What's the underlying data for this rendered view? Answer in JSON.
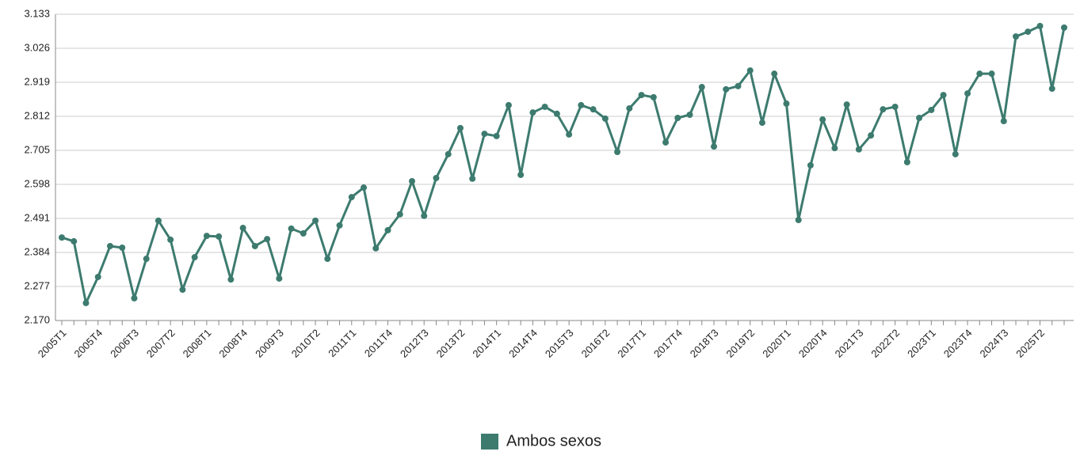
{
  "chart_data": {
    "type": "line",
    "categories": [
      "2005T1",
      null,
      null,
      "2005T4",
      null,
      null,
      "2006T3",
      null,
      null,
      "2007T2",
      null,
      null,
      "2008T1",
      null,
      null,
      "2008T4",
      null,
      null,
      "2009T3",
      null,
      null,
      "2010T2",
      null,
      null,
      "2011T1",
      null,
      null,
      "2011T4",
      null,
      null,
      "2012T3",
      null,
      null,
      "2013T2",
      null,
      null,
      "2014T1",
      null,
      null,
      "2014T4",
      null,
      null,
      "2015T3",
      null,
      null,
      "2016T2",
      null,
      null,
      "2017T1",
      null,
      null,
      "2017T4",
      null,
      null,
      "2018T3",
      null,
      null,
      "2019T2",
      null,
      null,
      "2020T1",
      null,
      null,
      "2020T4",
      null,
      null,
      "2021T3",
      null,
      null,
      "2022T2",
      null,
      null,
      "2023T1",
      null,
      null,
      "2023T4",
      null,
      null,
      "2024T3",
      null,
      null,
      "2025T2",
      null,
      null
    ],
    "series": [
      {
        "name": "Ambos sexos",
        "color": "#3d7b6f",
        "values": [
          2.431,
          2.419,
          2.225,
          2.307,
          2.404,
          2.399,
          2.24,
          2.364,
          2.484,
          2.424,
          2.267,
          2.369,
          2.436,
          2.434,
          2.299,
          2.461,
          2.404,
          2.426,
          2.302,
          2.459,
          2.444,
          2.484,
          2.364,
          2.469,
          2.558,
          2.588,
          2.397,
          2.454,
          2.504,
          2.608,
          2.499,
          2.618,
          2.693,
          2.775,
          2.616,
          2.757,
          2.75,
          2.847,
          2.628,
          2.824,
          2.842,
          2.82,
          2.755,
          2.847,
          2.834,
          2.805,
          2.7,
          2.837,
          2.879,
          2.872,
          2.73,
          2.807,
          2.817,
          2.904,
          2.717,
          2.897,
          2.907,
          2.956,
          2.792,
          2.946,
          2.852,
          2.486,
          2.658,
          2.802,
          2.712,
          2.849,
          2.708,
          2.752,
          2.834,
          2.842,
          2.668,
          2.807,
          2.832,
          2.879,
          2.693,
          2.884,
          2.946,
          2.946,
          2.797,
          3.063,
          3.078,
          3.096,
          2.899,
          3.091
        ]
      }
    ],
    "ylim": [
      2.17,
      3.133
    ],
    "yticks": [
      {
        "value": 2.17,
        "label": "2.170"
      },
      2.277,
      2.384,
      2.491,
      2.598,
      2.705,
      2.812,
      2.919,
      3.026,
      3.133
    ],
    "grid": true,
    "legend": "bottom"
  }
}
